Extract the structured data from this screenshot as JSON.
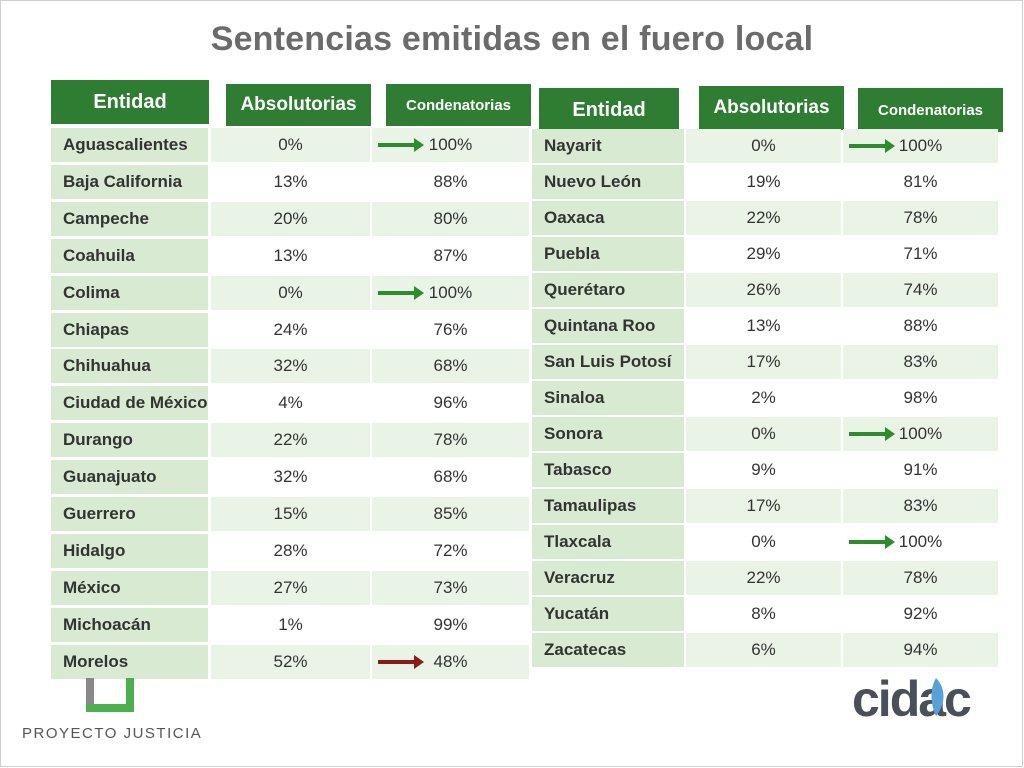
{
  "title": "Sentencias emitidas en el fuero local",
  "headers": {
    "entidad": "Entidad",
    "absolutorias": "Absolutorias",
    "condenatorias": "Condenatorias"
  },
  "left_rows": [
    {
      "entidad": "Aguascalientes",
      "abs": "0%",
      "cond": "100%",
      "arrow": "green"
    },
    {
      "entidad": "Baja California",
      "abs": "13%",
      "cond": "88%",
      "arrow": ""
    },
    {
      "entidad": "Campeche",
      "abs": "20%",
      "cond": "80%",
      "arrow": ""
    },
    {
      "entidad": "Coahuila",
      "abs": "13%",
      "cond": "87%",
      "arrow": ""
    },
    {
      "entidad": "Colima",
      "abs": "0%",
      "cond": "100%",
      "arrow": "green"
    },
    {
      "entidad": "Chiapas",
      "abs": "24%",
      "cond": "76%",
      "arrow": ""
    },
    {
      "entidad": "Chihuahua",
      "abs": "32%",
      "cond": "68%",
      "arrow": ""
    },
    {
      "entidad": "Ciudad de México",
      "abs": "4%",
      "cond": "96%",
      "arrow": ""
    },
    {
      "entidad": "Durango",
      "abs": "22%",
      "cond": "78%",
      "arrow": ""
    },
    {
      "entidad": "Guanajuato",
      "abs": "32%",
      "cond": "68%",
      "arrow": ""
    },
    {
      "entidad": "Guerrero",
      "abs": "15%",
      "cond": "85%",
      "arrow": ""
    },
    {
      "entidad": "Hidalgo",
      "abs": "28%",
      "cond": "72%",
      "arrow": ""
    },
    {
      "entidad": "México",
      "abs": "27%",
      "cond": "73%",
      "arrow": ""
    },
    {
      "entidad": "Michoacán",
      "abs": "1%",
      "cond": "99%",
      "arrow": ""
    },
    {
      "entidad": "Morelos",
      "abs": "52%",
      "cond": "48%",
      "arrow": "red"
    }
  ],
  "right_rows": [
    {
      "entidad": "Nayarit",
      "abs": "0%",
      "cond": "100%",
      "arrow": "green"
    },
    {
      "entidad": "Nuevo León",
      "abs": "19%",
      "cond": "81%",
      "arrow": ""
    },
    {
      "entidad": "Oaxaca",
      "abs": "22%",
      "cond": "78%",
      "arrow": ""
    },
    {
      "entidad": "Puebla",
      "abs": "29%",
      "cond": "71%",
      "arrow": ""
    },
    {
      "entidad": "Querétaro",
      "abs": "26%",
      "cond": "74%",
      "arrow": ""
    },
    {
      "entidad": "Quintana Roo",
      "abs": "13%",
      "cond": "88%",
      "arrow": ""
    },
    {
      "entidad": "San Luis Potosí",
      "abs": "17%",
      "cond": "83%",
      "arrow": ""
    },
    {
      "entidad": "Sinaloa",
      "abs": "2%",
      "cond": "98%",
      "arrow": ""
    },
    {
      "entidad": "Sonora",
      "abs": "0%",
      "cond": "100%",
      "arrow": "green"
    },
    {
      "entidad": "Tabasco",
      "abs": "9%",
      "cond": "91%",
      "arrow": ""
    },
    {
      "entidad": "Tamaulipas",
      "abs": "17%",
      "cond": "83%",
      "arrow": ""
    },
    {
      "entidad": "Tlaxcala",
      "abs": "0%",
      "cond": "100%",
      "arrow": "green"
    },
    {
      "entidad": "Veracruz",
      "abs": "22%",
      "cond": "78%",
      "arrow": ""
    },
    {
      "entidad": "Yucatán",
      "abs": "8%",
      "cond": "92%",
      "arrow": ""
    },
    {
      "entidad": "Zacatecas",
      "abs": "6%",
      "cond": "94%",
      "arrow": ""
    }
  ],
  "colors": {
    "header_green": "#2e7d32",
    "arrow_green": "#2e8b2e",
    "arrow_red": "#8b1a1a",
    "name_bg": "#d9ead3",
    "alt_bg": "#e9f3e6"
  },
  "logos": {
    "left_text": "PROYECTO JUSTICIA",
    "right_text": "cidac"
  }
}
